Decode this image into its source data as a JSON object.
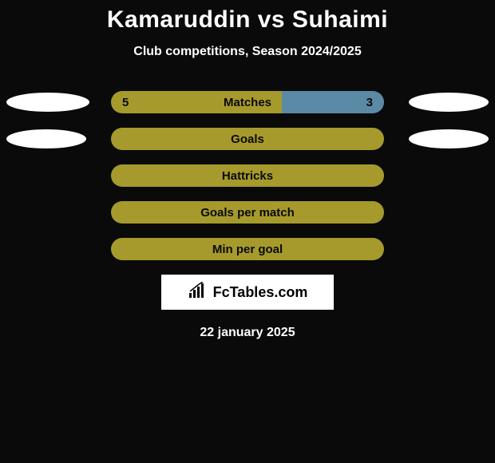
{
  "title": "Kamaruddin vs Suhaimi",
  "subtitle": "Club competitions, Season 2024/2025",
  "date": "22 january 2025",
  "logo": {
    "text": "FcTables.com"
  },
  "colors": {
    "left_bar": "#a69a2d",
    "right_bar": "#5a8aa5",
    "background": "#0a0a0a",
    "ellipse": "#ffffff"
  },
  "stats": [
    {
      "label": "Matches",
      "left_value": "5",
      "right_value": "3",
      "left_pct": 62.5,
      "right_pct": 37.5,
      "ellipse_left_w": 104,
      "ellipse_right_w": 100,
      "show_values": true
    },
    {
      "label": "Goals",
      "left_value": "",
      "right_value": "",
      "left_pct": 100,
      "right_pct": 0,
      "ellipse_left_w": 100,
      "ellipse_right_w": 100,
      "show_values": false
    },
    {
      "label": "Hattricks",
      "left_value": "",
      "right_value": "",
      "left_pct": 100,
      "right_pct": 0,
      "ellipse_left_w": 0,
      "ellipse_right_w": 0,
      "show_values": false
    },
    {
      "label": "Goals per match",
      "left_value": "",
      "right_value": "",
      "left_pct": 100,
      "right_pct": 0,
      "ellipse_left_w": 0,
      "ellipse_right_w": 0,
      "show_values": false
    },
    {
      "label": "Min per goal",
      "left_value": "",
      "right_value": "",
      "left_pct": 100,
      "right_pct": 0,
      "ellipse_left_w": 0,
      "ellipse_right_w": 0,
      "show_values": false
    }
  ]
}
